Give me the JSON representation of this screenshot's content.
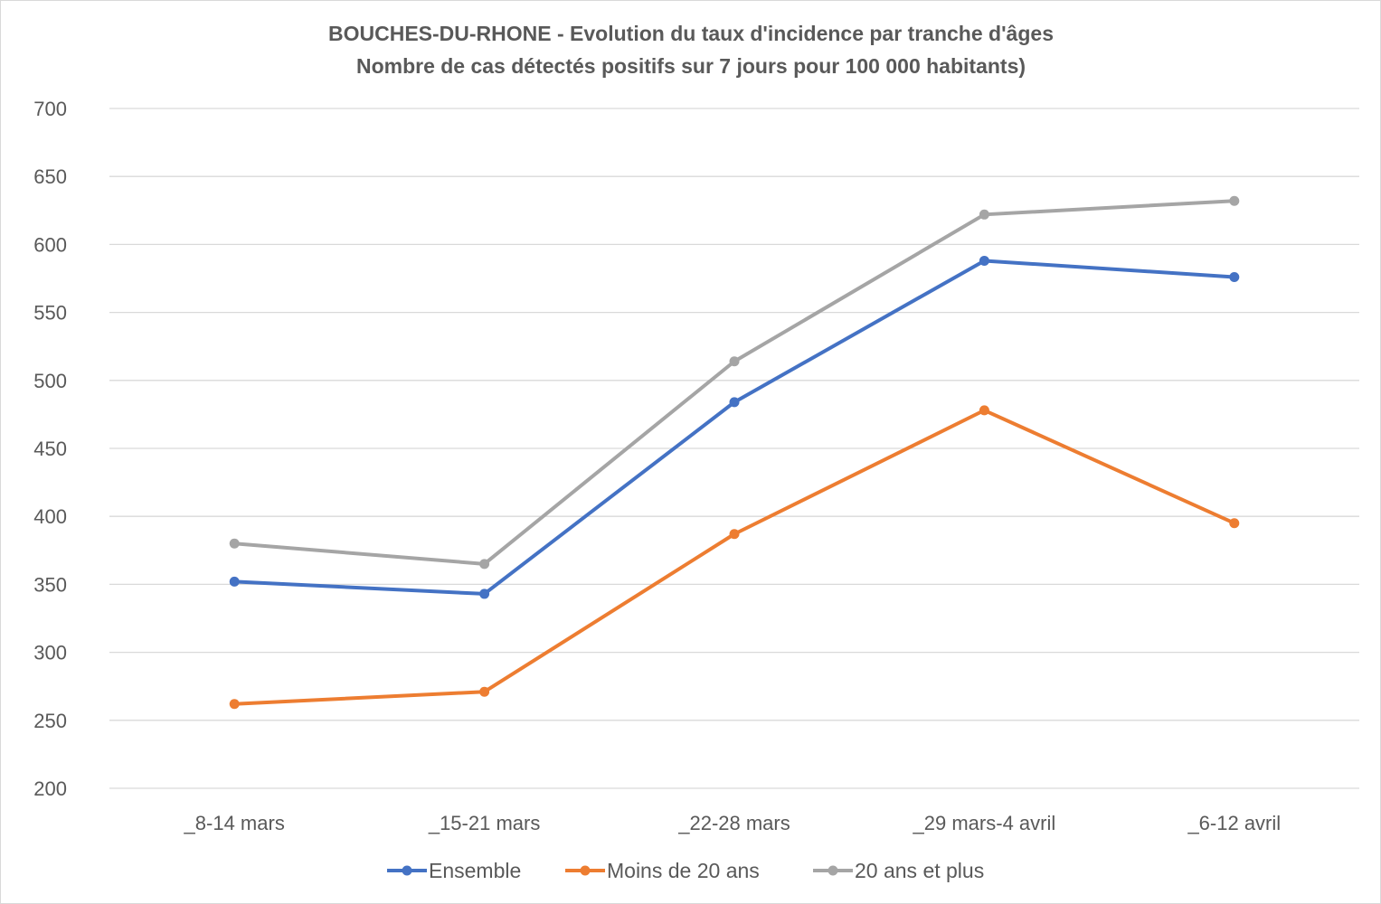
{
  "chart_data": {
    "type": "line",
    "title": "BOUCHES-DU-RHONE  - Evolution du taux d'incidence par tranche d'âges",
    "subtitle": "Nombre de cas détectés positifs sur 7 jours pour 100 000 habitants)",
    "categories": [
      "_8-14 mars",
      "_15-21 mars",
      "_22-28 mars",
      "_29 mars-4 avril",
      "_6-12 avril"
    ],
    "ylim": [
      200,
      700
    ],
    "yticks": [
      200,
      250,
      300,
      350,
      400,
      450,
      500,
      550,
      600,
      650,
      700
    ],
    "grid": true,
    "legend_position": "bottom",
    "series": [
      {
        "name": "Ensemble",
        "color": "#4472c4",
        "values": [
          352,
          343,
          484,
          588,
          576
        ]
      },
      {
        "name": "Moins de 20 ans",
        "color": "#ed7d31",
        "values": [
          262,
          271,
          387,
          478,
          395
        ]
      },
      {
        "name": "20 ans et plus",
        "color": "#a5a5a5",
        "values": [
          380,
          365,
          514,
          622,
          632
        ]
      }
    ]
  }
}
